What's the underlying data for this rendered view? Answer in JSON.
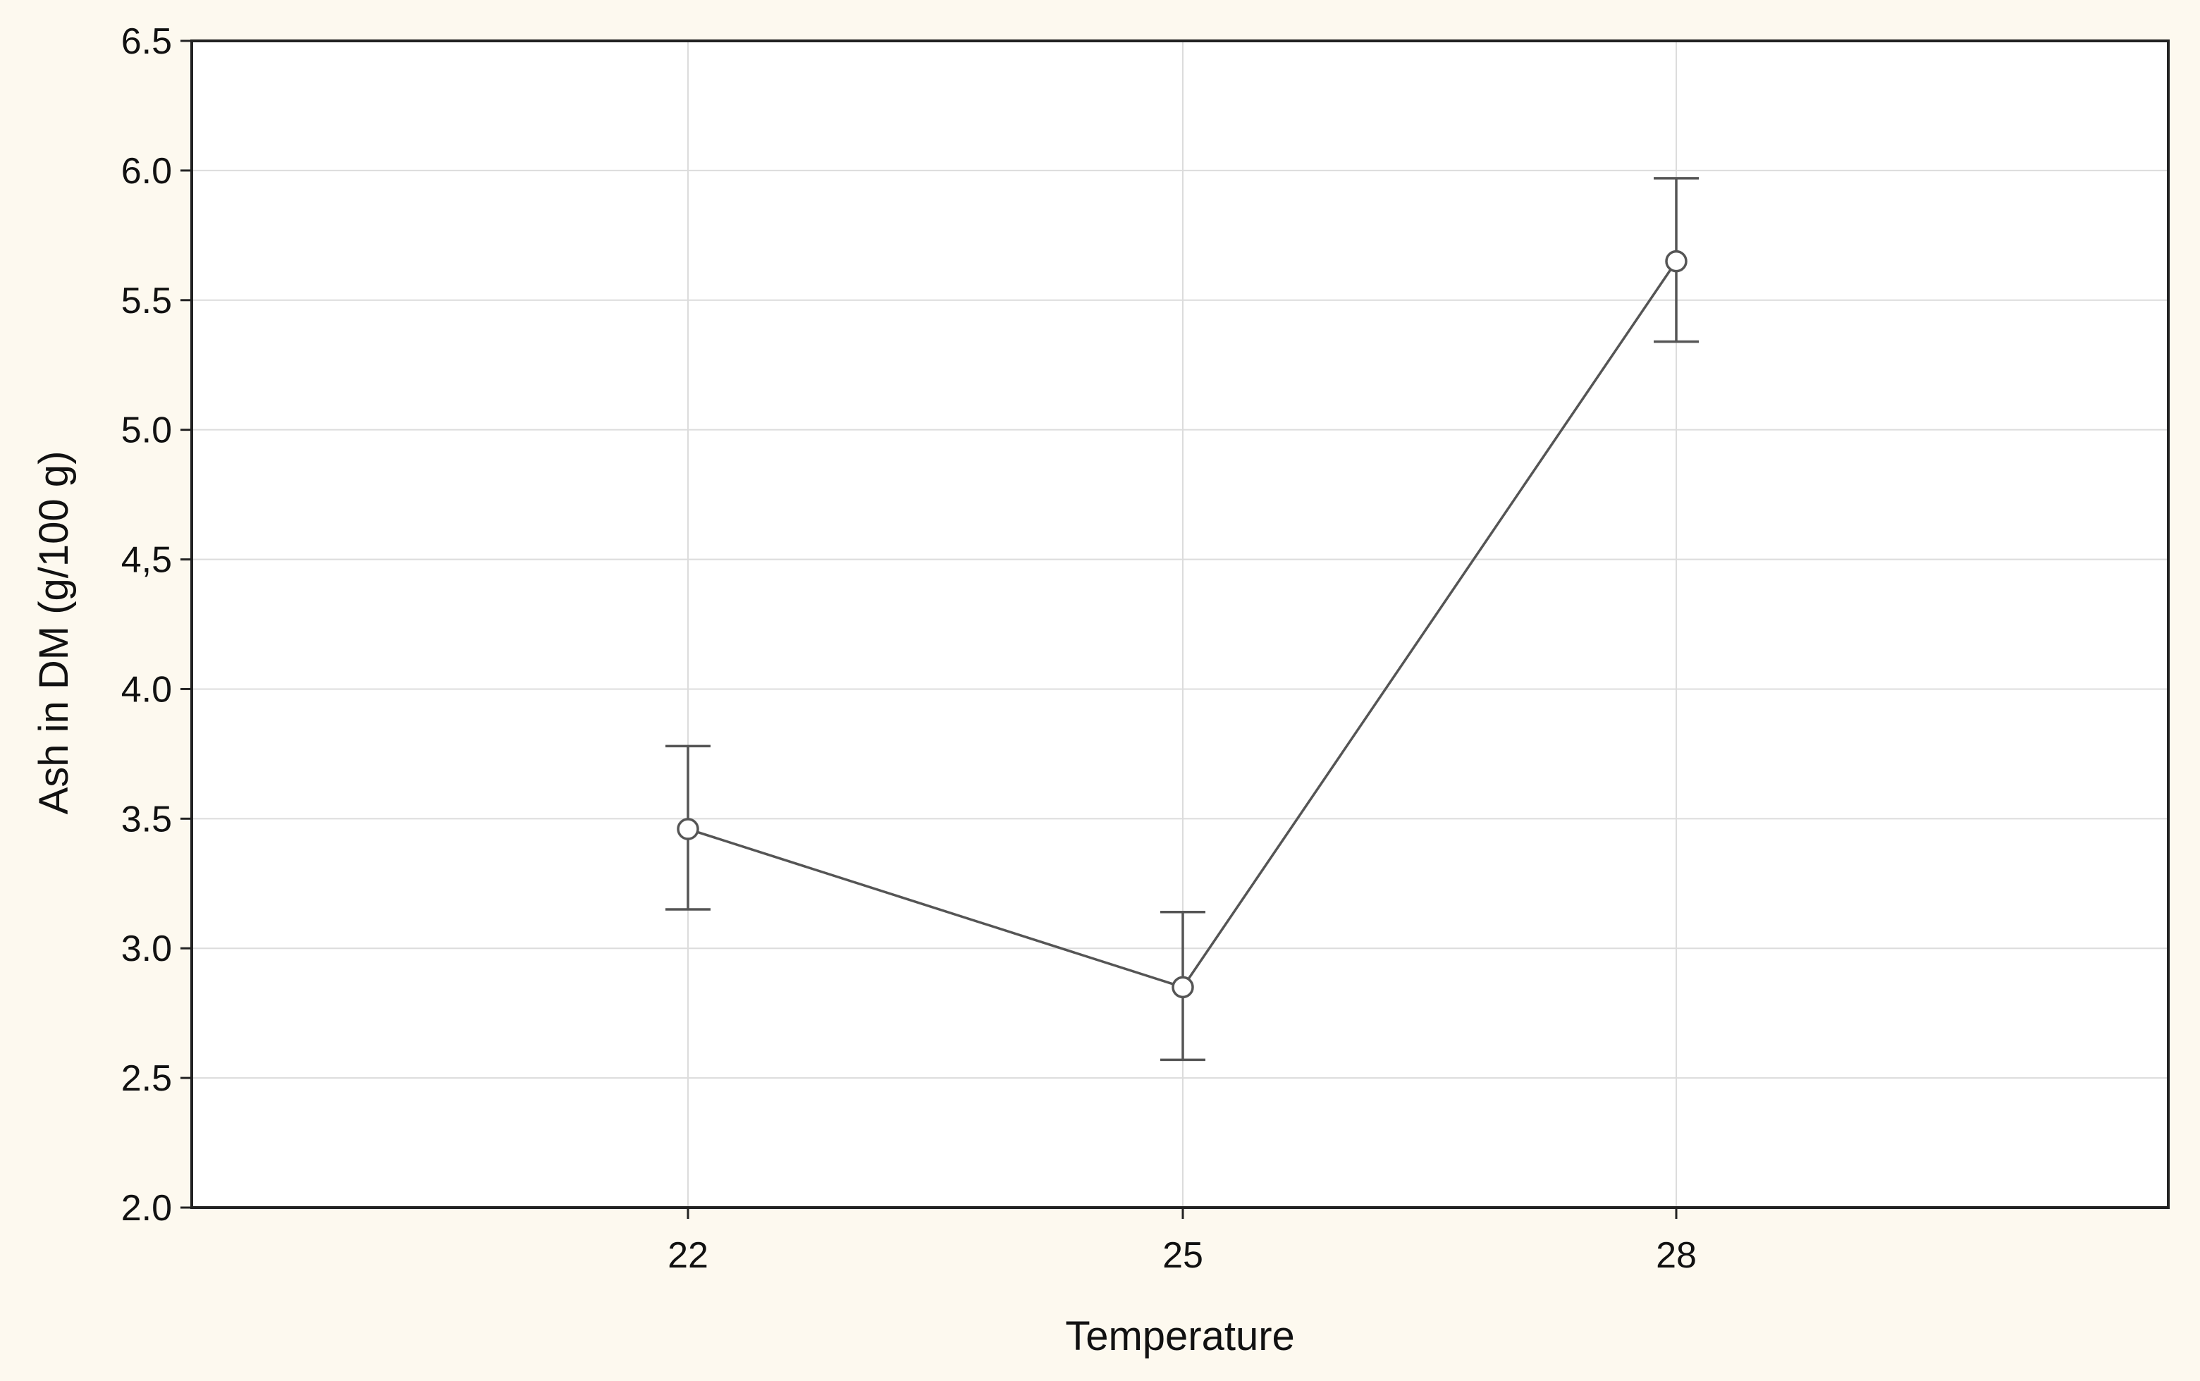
{
  "colors": {
    "canvas_background": "#fdf9ef",
    "plot_background": "#ffffff",
    "frame": "#222222",
    "grid": "#dcdcdc",
    "series_line": "#555555"
  },
  "chart_data": {
    "type": "line",
    "title": "",
    "xlabel": "Temperature",
    "ylabel": "Ash in DM (g/100 g)",
    "categories": [
      "22",
      "25",
      "28"
    ],
    "x_ticks": [
      "22",
      "25",
      "28"
    ],
    "y_ticks": [
      "2.0",
      "2.5",
      "3.0",
      "3.5",
      "4.0",
      "4,5",
      "5.0",
      "5.5",
      "6.0",
      "6.5"
    ],
    "ylim": [
      2.0,
      6.5
    ],
    "grid": true,
    "marker": "open-circle",
    "series": [
      {
        "values": [
          3.46,
          2.85,
          5.65
        ],
        "error_low": [
          3.15,
          2.57,
          5.34
        ],
        "error_high": [
          3.78,
          3.14,
          5.97
        ]
      }
    ]
  }
}
